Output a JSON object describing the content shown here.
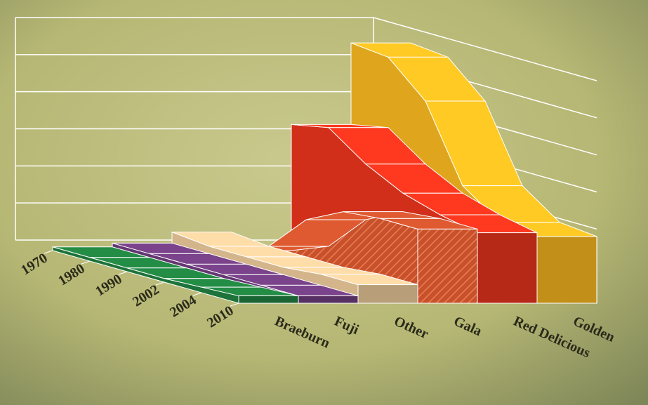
{
  "chart_data": {
    "type": "area3d",
    "categories": [
      "1970",
      "1980",
      "1990",
      "2002",
      "2004",
      "2010"
    ],
    "series": [
      {
        "name": "Braeburn",
        "color": "#1f7d3e",
        "values": [
          0.1,
          0.1,
          0.1,
          0.1,
          0.15,
          0.2
        ]
      },
      {
        "name": "Fuji",
        "color": "#6d3c7c",
        "values": [
          0.2,
          0.2,
          0.2,
          0.2,
          0.2,
          0.2
        ]
      },
      {
        "name": "Other",
        "color": "#e6c597",
        "values": [
          0.5,
          0.4,
          0.4,
          0.4,
          0.5,
          0.5
        ]
      },
      {
        "name": "Gala",
        "color": "#c8502c",
        "values": [
          0,
          0.4,
          1.4,
          1.9,
          2.0,
          2.0
        ]
      },
      {
        "name": "Red Delicious",
        "color": "#e3331c",
        "values": [
          3.4,
          3.6,
          2.9,
          2.4,
          2.1,
          1.9
        ]
      },
      {
        "name": "Golden",
        "color": "#f2b41f",
        "values": [
          5.6,
          5.5,
          4.6,
          2.6,
          1.9,
          1.8
        ]
      }
    ],
    "ylim": [
      0,
      6
    ],
    "yticks": [
      0,
      1,
      2,
      3,
      4,
      5,
      6
    ],
    "grid": true
  }
}
